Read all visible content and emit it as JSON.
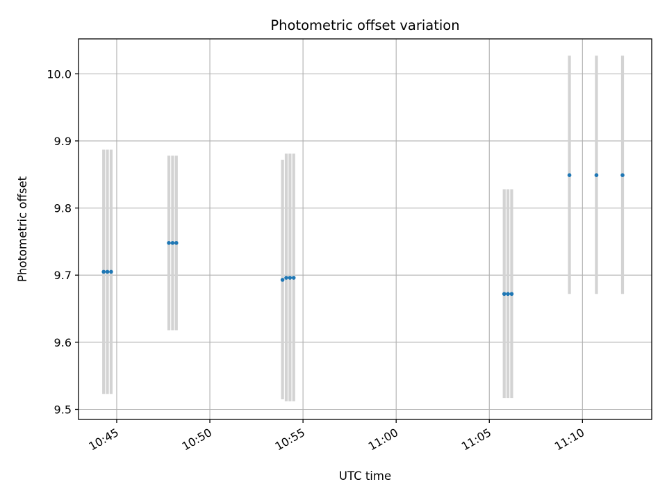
{
  "chart_data": {
    "type": "scatter",
    "title": "Photometric offset variation",
    "xlabel": "UTC time",
    "ylabel": "Photometric offset",
    "x_ticks": [
      "10:45",
      "10:50",
      "10:55",
      "11:00",
      "11:05",
      "11:10"
    ],
    "y_ticks": [
      "9.5",
      "9.6",
      "9.7",
      "9.8",
      "9.9",
      "10.0"
    ],
    "xlim": [
      "10:42:57",
      "11:13:43"
    ],
    "ylim": [
      9.485,
      10.052
    ],
    "grid": true,
    "marker_color": "#1f77b4",
    "errorbar_color": "#d3d3d3",
    "points": [
      {
        "time": "10:44:18",
        "value": 9.705,
        "err_low": 9.523,
        "err_high": 9.887
      },
      {
        "time": "10:44:30",
        "value": 9.705,
        "err_low": 9.523,
        "err_high": 9.887
      },
      {
        "time": "10:44:42",
        "value": 9.705,
        "err_low": 9.523,
        "err_high": 9.887
      },
      {
        "time": "10:47:48",
        "value": 9.748,
        "err_low": 9.618,
        "err_high": 9.878
      },
      {
        "time": "10:48:00",
        "value": 9.748,
        "err_low": 9.618,
        "err_high": 9.878
      },
      {
        "time": "10:48:12",
        "value": 9.748,
        "err_low": 9.618,
        "err_high": 9.878
      },
      {
        "time": "10:53:54",
        "value": 9.693,
        "err_low": 9.515,
        "err_high": 9.872
      },
      {
        "time": "10:54:06",
        "value": 9.696,
        "err_low": 9.512,
        "err_high": 9.881
      },
      {
        "time": "10:54:18",
        "value": 9.696,
        "err_low": 9.512,
        "err_high": 9.881
      },
      {
        "time": "10:54:30",
        "value": 9.696,
        "err_low": 9.512,
        "err_high": 9.881
      },
      {
        "time": "11:05:48",
        "value": 9.672,
        "err_low": 9.517,
        "err_high": 9.828
      },
      {
        "time": "11:06:00",
        "value": 9.672,
        "err_low": 9.517,
        "err_high": 9.828
      },
      {
        "time": "11:06:12",
        "value": 9.672,
        "err_low": 9.517,
        "err_high": 9.828
      },
      {
        "time": "11:09:18",
        "value": 9.849,
        "err_low": 9.672,
        "err_high": 10.027
      },
      {
        "time": "11:10:45",
        "value": 9.849,
        "err_low": 9.672,
        "err_high": 10.027
      },
      {
        "time": "11:12:09",
        "value": 9.849,
        "err_low": 9.672,
        "err_high": 10.027
      }
    ]
  }
}
